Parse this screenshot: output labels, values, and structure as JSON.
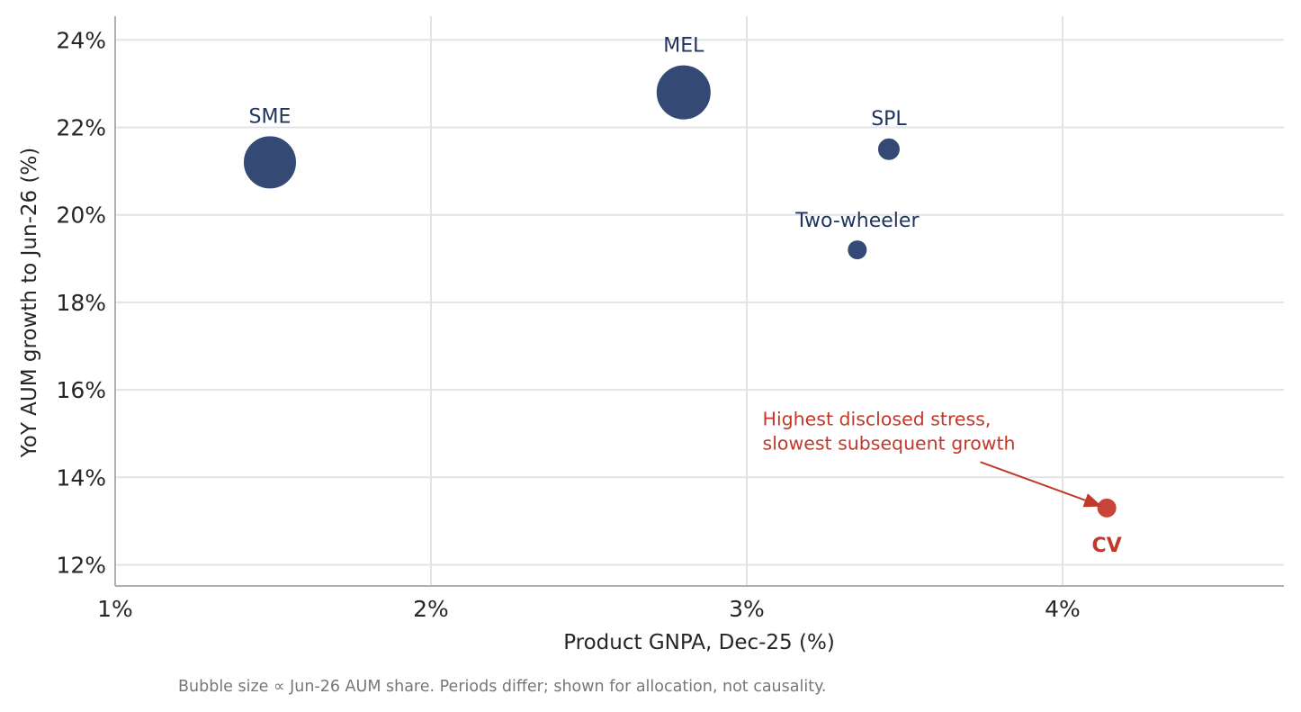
{
  "chart_data": {
    "type": "scatter",
    "title": "",
    "xlabel": "Product GNPA, Dec-25 (%)",
    "ylabel": "YoY AUM growth to Jun-26 (%)",
    "xlim": [
      1.0,
      4.7
    ],
    "ylim": [
      11.55,
      24.5
    ],
    "x_ticks": [
      1,
      2,
      3,
      4
    ],
    "x_tick_labels": [
      "1%",
      "2%",
      "3%",
      "4%"
    ],
    "y_ticks": [
      12,
      14,
      16,
      18,
      20,
      22,
      24
    ],
    "y_tick_labels": [
      "12%",
      "14%",
      "16%",
      "18%",
      "20%",
      "22%",
      "24%"
    ],
    "grid": true,
    "colors": {
      "default": "#344a74",
      "highlight": "#c9453a",
      "label": "#1f3560",
      "highlight_label": "#c0392b"
    },
    "points": [
      {
        "label": "SME",
        "x": 1.49,
        "y": 21.2,
        "size": 30,
        "highlight": false
      },
      {
        "label": "MEL",
        "x": 2.8,
        "y": 22.8,
        "size": 31,
        "highlight": false
      },
      {
        "label": "SPL",
        "x": 3.45,
        "y": 21.5,
        "size": 13,
        "highlight": false
      },
      {
        "label": "Two-wheeler",
        "x": 3.35,
        "y": 19.2,
        "size": 11.5,
        "highlight": false
      },
      {
        "label": "CV",
        "x": 4.14,
        "y": 13.3,
        "size": 11.5,
        "highlight": true
      }
    ],
    "annotation": {
      "lines": [
        "Highest disclosed stress,",
        "slowest subsequent growth"
      ],
      "x": 3.05,
      "y": 15.05,
      "arrow_from": [
        3.74,
        14.35
      ],
      "arrow_to": [
        4.12,
        13.35
      ]
    }
  },
  "footnote": "Bubble size ∝ Jun-26 AUM share. Periods differ; shown for allocation, not causality."
}
